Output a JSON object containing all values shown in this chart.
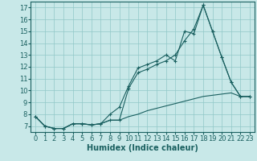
{
  "xlabel": "Humidex (Indice chaleur)",
  "bg_color": "#c8e8e8",
  "grid_color": "#90c8c8",
  "line_color": "#1a6060",
  "xlim": [
    -0.5,
    23.5
  ],
  "ylim": [
    6.5,
    17.5
  ],
  "yticks": [
    7,
    8,
    9,
    10,
    11,
    12,
    13,
    14,
    15,
    16,
    17
  ],
  "xticks": [
    0,
    1,
    2,
    3,
    4,
    5,
    6,
    7,
    8,
    9,
    10,
    11,
    12,
    13,
    14,
    15,
    16,
    17,
    18,
    19,
    20,
    21,
    22,
    23
  ],
  "line1_x": [
    0,
    1,
    2,
    3,
    4,
    5,
    6,
    7,
    8,
    9,
    10,
    11,
    12,
    13,
    14,
    15,
    16,
    17,
    18,
    19,
    20,
    21,
    22,
    23
  ],
  "line1_y": [
    7.8,
    7.0,
    6.8,
    6.8,
    7.2,
    7.2,
    7.1,
    7.2,
    8.0,
    8.6,
    10.4,
    11.9,
    12.2,
    12.5,
    13.0,
    12.5,
    15.0,
    14.8,
    17.2,
    15.0,
    12.8,
    10.7,
    9.5,
    9.5
  ],
  "line2_x": [
    0,
    1,
    2,
    3,
    4,
    5,
    6,
    7,
    8,
    9,
    10,
    11,
    12,
    13,
    14,
    15,
    16,
    17,
    18,
    19,
    20,
    21,
    22,
    23
  ],
  "line2_y": [
    7.8,
    7.0,
    6.8,
    6.8,
    7.2,
    7.2,
    7.1,
    7.2,
    7.5,
    7.5,
    10.2,
    11.5,
    11.8,
    12.2,
    12.5,
    13.0,
    14.2,
    15.2,
    17.2,
    15.0,
    12.8,
    10.7,
    9.5,
    9.5
  ],
  "line3_x": [
    0,
    1,
    2,
    3,
    4,
    5,
    6,
    7,
    8,
    9,
    10,
    11,
    12,
    13,
    14,
    15,
    16,
    17,
    18,
    19,
    20,
    21,
    22,
    23
  ],
  "line3_y": [
    7.8,
    7.0,
    6.8,
    6.8,
    7.2,
    7.2,
    7.1,
    7.2,
    7.5,
    7.5,
    7.8,
    8.0,
    8.3,
    8.5,
    8.7,
    8.9,
    9.1,
    9.3,
    9.5,
    9.6,
    9.7,
    9.8,
    9.5,
    9.5
  ],
  "font_size_label": 7,
  "font_size_tick": 6.0
}
